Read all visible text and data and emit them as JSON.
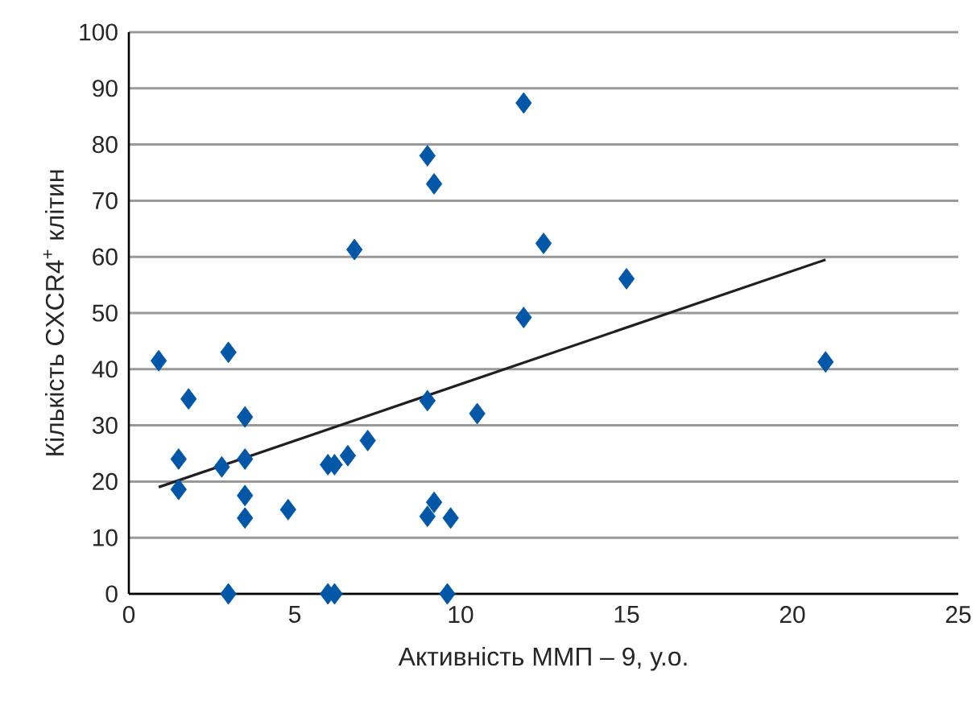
{
  "chart_data": {
    "type": "scatter",
    "xlabel": "Активність ММП – 9, у.о.",
    "ylabel": "Кількість  CXCR4$^{+}$ клітин",
    "xlim": [
      0,
      25
    ],
    "xticks": [
      0,
      5,
      10,
      15,
      20,
      25
    ],
    "ylim": [
      0,
      100
    ],
    "yticks": [
      0,
      10,
      20,
      30,
      40,
      50,
      60,
      70,
      80,
      90,
      100
    ],
    "grid": "y",
    "series": [
      {
        "marker": "diamond",
        "color": "#0057a8",
        "x": [
          0.9,
          1.5,
          1.5,
          1.8,
          2.8,
          3.0,
          3.0,
          3.5,
          3.5,
          3.5,
          3.5,
          4.8,
          6.0,
          6.2,
          6.0,
          6.2,
          6.6,
          7.2,
          6.8,
          9.0,
          9.2,
          9.0,
          9.0,
          9.2,
          9.7,
          9.6,
          10.5,
          11.9,
          11.9,
          12.5,
          15.0,
          21.0
        ],
        "values": [
          41.5,
          24,
          18.6,
          34.7,
          22.6,
          43,
          0,
          31.5,
          24,
          17.5,
          13.5,
          15,
          23,
          23,
          0,
          0,
          24.6,
          27.3,
          61.3,
          78,
          73,
          34.4,
          13.8,
          16.3,
          13.5,
          0,
          32.1,
          87.4,
          49.2,
          62.4,
          56.1,
          41.3
        ]
      },
      {
        "type": "line",
        "marker": "none",
        "color": "#231f20",
        "x": [
          0.9,
          21.0
        ],
        "values": [
          19,
          59.5
        ]
      }
    ]
  }
}
